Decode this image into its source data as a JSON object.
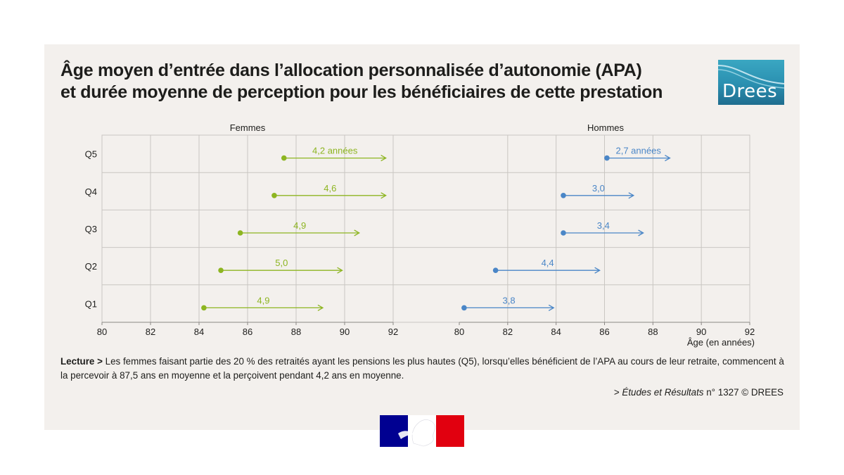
{
  "title": {
    "line1": "Âge moyen d’entrée dans l’allocation personnalisée d’autonomie (APA)",
    "line2": "et durée moyenne de perception pour les bénéficiaires de cette prestation"
  },
  "logo": {
    "text": "Drees",
    "color": "#2a8fb0"
  },
  "chart_data": [
    {
      "type": "dumbbell",
      "panel_title": "Femmes",
      "color": "#8db521",
      "categories": [
        "Q5",
        "Q4",
        "Q3",
        "Q2",
        "Q1"
      ],
      "start": [
        87.5,
        87.1,
        85.7,
        84.9,
        84.2
      ],
      "end": [
        91.7,
        91.7,
        90.6,
        89.9,
        89.1
      ],
      "labels": [
        "4,2 années",
        "4,6",
        "4,9",
        "5,0",
        "4,9"
      ],
      "xticks": [
        "80",
        "82",
        "84",
        "86",
        "88",
        "90",
        "92"
      ],
      "xlim": [
        80,
        92
      ],
      "grid": true
    },
    {
      "type": "dumbbell",
      "panel_title": "Hommes",
      "color": "#4a86c7",
      "categories": [
        "Q5",
        "Q4",
        "Q3",
        "Q2",
        "Q1"
      ],
      "start": [
        86.1,
        84.3,
        84.3,
        81.5,
        80.2
      ],
      "end": [
        88.7,
        87.2,
        87.6,
        85.8,
        83.9
      ],
      "labels": [
        "2,7 années",
        "3,0",
        "3,4",
        "4,4",
        "3,8"
      ],
      "xticks": [
        "80",
        "82",
        "84",
        "86",
        "88",
        "90",
        "92"
      ],
      "xlim": [
        80,
        92
      ],
      "xlabel": "Âge (en années)",
      "grid": true
    }
  ],
  "lecture": {
    "prefix": "Lecture >",
    "text": " Les femmes faisant partie des 20 % des retraités ayant les pensions les plus hautes (Q5), lorsqu’elles bénéficient de l’APA au cours de leur retraite, commencent à la percevoir à 87,5 ans en moyenne et la perçoivent pendant 4,2 ans en moyenne."
  },
  "source": {
    "prefix": "> ",
    "publication": "Études et Résultats",
    "suffix": " n° 1327 © DREES"
  },
  "marianne": {
    "blue": "#000091",
    "red": "#e1000f"
  }
}
